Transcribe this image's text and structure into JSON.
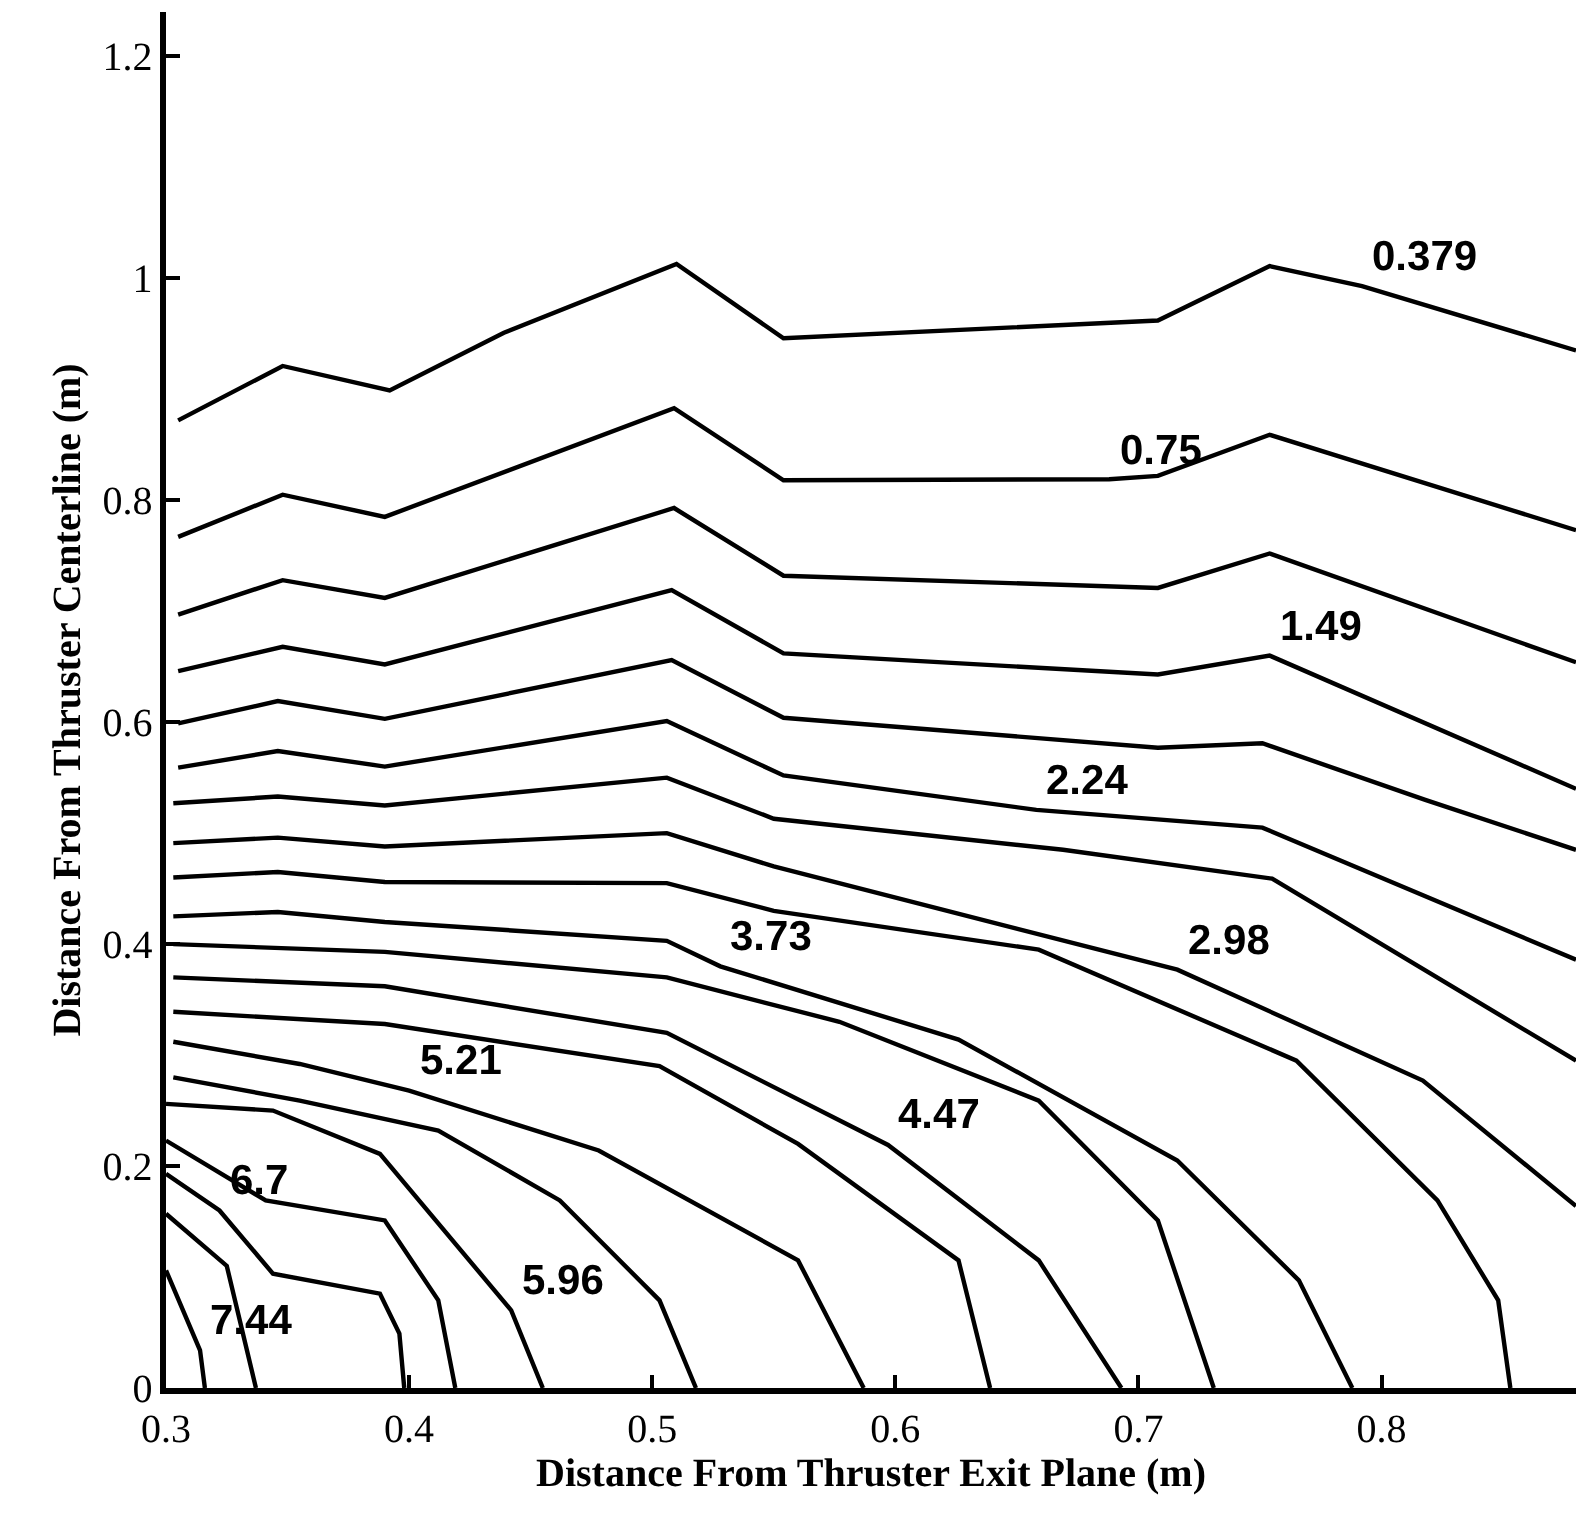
{
  "chart_data": {
    "type": "line",
    "xlabel": "Distance From Thruster Exit Plane (m)",
    "ylabel": "Distance From Thruster Centerline (m)",
    "xlim": [
      0.3,
      0.88
    ],
    "ylim": [
      0,
      1.24
    ],
    "xticks": [
      0.3,
      0.4,
      0.5,
      0.6,
      0.7,
      0.8
    ],
    "yticks": [
      0,
      0.2,
      0.4,
      0.6,
      0.8,
      1,
      1.2
    ],
    "series": [
      {
        "color": "#000000",
        "x": [
          0.305,
          0.348,
          0.392,
          0.439,
          0.51,
          0.554,
          0.708,
          0.754,
          0.792,
          0.88
        ],
        "values": [
          0.872,
          0.921,
          0.899,
          0.951,
          1.013,
          0.946,
          0.962,
          1.011,
          0.993,
          0.935
        ]
      },
      {
        "color": "#000000",
        "x": [
          0.305,
          0.348,
          0.39,
          0.509,
          0.554,
          0.688,
          0.708,
          0.754,
          0.88
        ],
        "values": [
          0.767,
          0.805,
          0.785,
          0.883,
          0.818,
          0.819,
          0.822,
          0.859,
          0.773
        ]
      },
      {
        "color": "#000000",
        "x": [
          0.305,
          0.348,
          0.39,
          0.509,
          0.554,
          0.708,
          0.754,
          0.88
        ],
        "values": [
          0.697,
          0.728,
          0.712,
          0.793,
          0.732,
          0.721,
          0.752,
          0.654
        ]
      },
      {
        "color": "#000000",
        "x": [
          0.305,
          0.348,
          0.39,
          0.508,
          0.554,
          0.708,
          0.754,
          0.88
        ],
        "values": [
          0.646,
          0.668,
          0.652,
          0.719,
          0.662,
          0.643,
          0.66,
          0.54
        ]
      },
      {
        "color": "#000000",
        "x": [
          0.305,
          0.346,
          0.39,
          0.508,
          0.554,
          0.708,
          0.751,
          0.818,
          0.88
        ],
        "values": [
          0.599,
          0.619,
          0.603,
          0.656,
          0.604,
          0.577,
          0.581,
          0.53,
          0.485
        ]
      },
      {
        "color": "#000000",
        "x": [
          0.305,
          0.346,
          0.39,
          0.506,
          0.554,
          0.658,
          0.751,
          0.88
        ],
        "values": [
          0.559,
          0.574,
          0.56,
          0.601,
          0.552,
          0.521,
          0.505,
          0.386
        ]
      },
      {
        "color": "#000000",
        "x": [
          0.303,
          0.346,
          0.39,
          0.506,
          0.55,
          0.669,
          0.755,
          0.88
        ],
        "values": [
          0.527,
          0.533,
          0.525,
          0.55,
          0.513,
          0.485,
          0.459,
          0.295
        ]
      },
      {
        "color": "#000000",
        "x": [
          0.303,
          0.346,
          0.39,
          0.506,
          0.55,
          0.716,
          0.817,
          0.88
        ],
        "values": [
          0.491,
          0.496,
          0.488,
          0.5,
          0.47,
          0.377,
          0.277,
          0.164
        ]
      },
      {
        "color": "#000000",
        "x": [
          0.303,
          0.346,
          0.39,
          0.506,
          0.55,
          0.659,
          0.765,
          0.823,
          0.848,
          0.853
        ],
        "values": [
          0.46,
          0.465,
          0.456,
          0.455,
          0.43,
          0.395,
          0.295,
          0.169,
          0.079,
          0
        ]
      },
      {
        "color": "#000000",
        "x": [
          0.303,
          0.346,
          0.39,
          0.506,
          0.528,
          0.626,
          0.716,
          0.766,
          0.788
        ],
        "values": [
          0.425,
          0.429,
          0.42,
          0.403,
          0.38,
          0.314,
          0.205,
          0.097,
          0
        ]
      },
      {
        "color": "#000000",
        "x": [
          0.303,
          0.39,
          0.506,
          0.577,
          0.659,
          0.708,
          0.731
        ],
        "values": [
          0.4,
          0.393,
          0.37,
          0.33,
          0.259,
          0.151,
          0
        ]
      },
      {
        "color": "#000000",
        "x": [
          0.303,
          0.39,
          0.506,
          0.597,
          0.659,
          0.693
        ],
        "values": [
          0.37,
          0.362,
          0.32,
          0.219,
          0.115,
          0
        ]
      },
      {
        "color": "#000000",
        "x": [
          0.303,
          0.39,
          0.503,
          0.56,
          0.626,
          0.639
        ],
        "values": [
          0.339,
          0.328,
          0.29,
          0.22,
          0.115,
          0
        ]
      },
      {
        "color": "#000000",
        "x": [
          0.303,
          0.355,
          0.4,
          0.478,
          0.56,
          0.587
        ],
        "values": [
          0.312,
          0.292,
          0.268,
          0.214,
          0.115,
          0
        ]
      },
      {
        "color": "#000000",
        "x": [
          0.303,
          0.355,
          0.412,
          0.462,
          0.503,
          0.518
        ],
        "values": [
          0.28,
          0.259,
          0.232,
          0.169,
          0.079,
          0
        ]
      },
      {
        "color": "#000000",
        "x": [
          0.3,
          0.344,
          0.388,
          0.442,
          0.455
        ],
        "values": [
          0.256,
          0.25,
          0.211,
          0.07,
          0
        ]
      },
      {
        "color": "#000000",
        "x": [
          0.3,
          0.341,
          0.39,
          0.412,
          0.419
        ],
        "values": [
          0.223,
          0.169,
          0.151,
          0.079,
          0
        ]
      },
      {
        "color": "#000000",
        "x": [
          0.3,
          0.322,
          0.344,
          0.388,
          0.396,
          0.398
        ],
        "values": [
          0.193,
          0.16,
          0.103,
          0.085,
          0.049,
          0
        ]
      },
      {
        "color": "#000000",
        "x": [
          0.3,
          0.325,
          0.337
        ],
        "values": [
          0.157,
          0.11,
          0
        ]
      },
      {
        "color": "#000000",
        "x": [
          0.3,
          0.314,
          0.316
        ],
        "values": [
          0.106,
          0.034,
          0
        ]
      }
    ],
    "annotations": [
      {
        "text": "0.379",
        "x": 0.792,
        "y": 0.993
      },
      {
        "text": "0.75",
        "x": 0.688,
        "y": 0.819
      },
      {
        "text": "1.49",
        "x": 0.754,
        "y": 0.66
      },
      {
        "text": "2.24",
        "x": 0.658,
        "y": 0.521
      },
      {
        "text": "2.98",
        "x": 0.716,
        "y": 0.377
      },
      {
        "text": "3.73",
        "x": 0.528,
        "y": 0.38
      },
      {
        "text": "4.47",
        "x": 0.597,
        "y": 0.219
      },
      {
        "text": "5.21",
        "x": 0.4,
        "y": 0.268
      },
      {
        "text": "5.96",
        "x": 0.442,
        "y": 0.07
      },
      {
        "text": "6.7",
        "x": 0.322,
        "y": 0.16
      },
      {
        "text": "7.44",
        "x": 0.314,
        "y": 0.034
      }
    ]
  }
}
